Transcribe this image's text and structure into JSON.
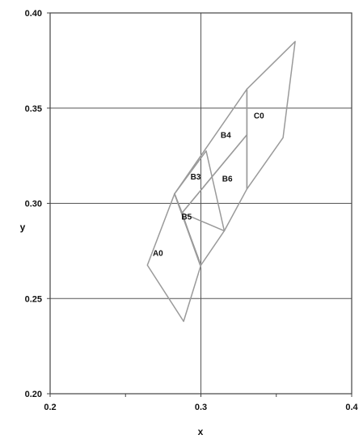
{
  "chart_data": {
    "type": "scatter",
    "title": "",
    "xlabel": "x",
    "ylabel": "y",
    "xlim": [
      0.2,
      0.4
    ],
    "ylim": [
      0.2,
      0.4
    ],
    "x_ticks": [
      0.2,
      0.25,
      0.3,
      0.35,
      0.4
    ],
    "x_tick_labels": [
      "0.2",
      "",
      "0.3",
      "",
      "0.4"
    ],
    "y_ticks": [
      0.2,
      0.25,
      0.3,
      0.35,
      0.4
    ],
    "y_tick_labels": [
      "0.20",
      "0.25",
      "0.30",
      "0.35",
      "0.40"
    ],
    "grid_x": [
      0.3
    ],
    "grid_y": [
      0.25,
      0.3,
      0.35
    ],
    "grid": true,
    "colors": {
      "outline": "#9a9a9a",
      "axis": "#444444",
      "grid": "#555555"
    },
    "regions": [
      {
        "label": "A0",
        "polygon": [
          [
            0.2645,
            0.2675
          ],
          [
            0.2825,
            0.305
          ],
          [
            0.3,
            0.2675
          ],
          [
            0.2885,
            0.238
          ]
        ],
        "label_at": [
          0.2715,
          0.2725
        ]
      },
      {
        "label": "B5",
        "polygon": [
          [
            0.2825,
            0.305
          ],
          [
            0.2875,
            0.295
          ],
          [
            0.2995,
            0.2675
          ],
          [
            0.2825,
            0.305
          ]
        ],
        "label_at": [
          0.2905,
          0.2915
        ]
      },
      {
        "label": "B3",
        "polygon": [
          [
            0.2825,
            0.305
          ],
          [
            0.3035,
            0.3275
          ],
          [
            0.3155,
            0.2855
          ],
          [
            0.3,
            0.2675
          ]
        ],
        "label_at": [
          0.2965,
          0.3125
        ]
      },
      {
        "label": "B6",
        "polygon": [
          [
            0.2875,
            0.295
          ],
          [
            0.3305,
            0.336
          ],
          [
            0.3305,
            0.3075
          ],
          [
            0.3155,
            0.2855
          ]
        ],
        "label_at": [
          0.3175,
          0.3115
        ]
      },
      {
        "label": "B4",
        "polygon": [
          [
            0.2825,
            0.305
          ],
          [
            0.3305,
            0.36
          ],
          [
            0.3305,
            0.336
          ],
          [
            0.2875,
            0.295
          ]
        ],
        "label_at": [
          0.3165,
          0.3345
        ]
      },
      {
        "label": "C0",
        "polygon": [
          [
            0.3305,
            0.36
          ],
          [
            0.3625,
            0.385
          ],
          [
            0.3545,
            0.3345
          ],
          [
            0.3305,
            0.3075
          ]
        ],
        "label_at": [
          0.3385,
          0.3445
        ]
      }
    ]
  }
}
